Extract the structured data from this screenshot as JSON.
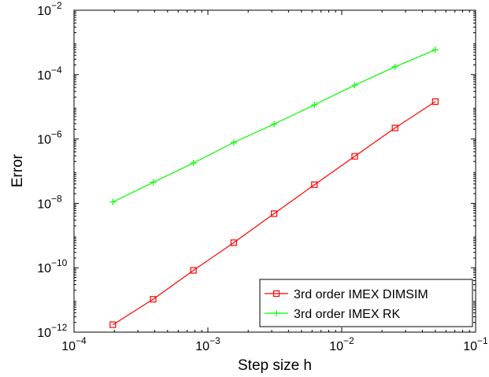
{
  "chart_data": {
    "type": "line",
    "xlabel": "Step size h",
    "ylabel": "Error",
    "xscale": "log",
    "yscale": "log",
    "xlim": [
      0.0001,
      0.1
    ],
    "ylim": [
      1e-12,
      0.01
    ],
    "x_ticks": [
      {
        "value": 0.0001,
        "base": "10",
        "exp": "−4"
      },
      {
        "value": 0.001,
        "base": "10",
        "exp": "−3"
      },
      {
        "value": 0.01,
        "base": "10",
        "exp": "−2"
      },
      {
        "value": 0.1,
        "base": "10",
        "exp": "−1"
      }
    ],
    "y_ticks": [
      {
        "value": 1e-12,
        "base": "10",
        "exp": "−12"
      },
      {
        "value": 1e-10,
        "base": "10",
        "exp": "−10"
      },
      {
        "value": 1e-08,
        "base": "10",
        "exp": "−8"
      },
      {
        "value": 1e-06,
        "base": "10",
        "exp": "−6"
      },
      {
        "value": 0.0001,
        "base": "10",
        "exp": "−4"
      },
      {
        "value": 0.01,
        "base": "10",
        "exp": "−2"
      }
    ],
    "grid": false,
    "legend_position": "bottom-right",
    "series": [
      {
        "name": "3rd order IMEX DIMSIM",
        "color": "#ff0000",
        "marker": "square",
        "x": [
          0.000195,
          0.00039,
          0.00078,
          0.00156,
          0.003125,
          0.00625,
          0.0125,
          0.025,
          0.05
        ],
        "y": [
          1.7e-12,
          1.05e-11,
          8.3e-11,
          6e-10,
          4.8e-09,
          3.8e-08,
          2.9e-07,
          2.2e-06,
          1.45e-05
        ]
      },
      {
        "name": "3rd order IMEX RK",
        "color": "#00ff00",
        "marker": "plus",
        "x": [
          0.000195,
          0.00039,
          0.00078,
          0.00156,
          0.003125,
          0.00625,
          0.0125,
          0.025,
          0.05
        ],
        "y": [
          1.1e-08,
          4.5e-08,
          1.8e-07,
          7.8e-07,
          2.9e-06,
          1.15e-05,
          4.7e-05,
          0.000175,
          0.00059
        ]
      }
    ]
  }
}
